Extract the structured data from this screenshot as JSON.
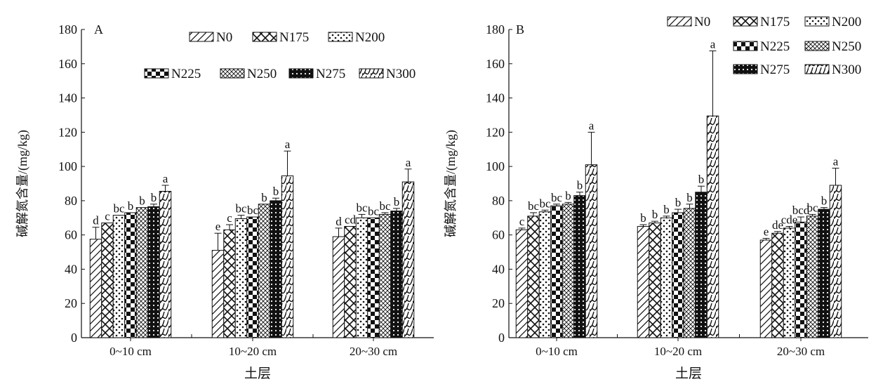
{
  "chart_data": [
    {
      "type": "bar",
      "panel_label": "A",
      "title": "",
      "xlabel": "土层",
      "ylabel": "碱解氮含量/(mg/kg)",
      "ylim": [
        0,
        180
      ],
      "yticks": [
        0,
        20,
        40,
        60,
        80,
        100,
        120,
        140,
        160,
        180
      ],
      "categories": [
        "0~10 cm",
        "10~20 cm",
        "20~30 cm"
      ],
      "legend_position": "top-right",
      "series": [
        {
          "name": "N0",
          "values": [
            57.5,
            51,
            59
          ],
          "errors": [
            7,
            10,
            5
          ],
          "sig": [
            "d",
            "e",
            "d"
          ]
        },
        {
          "name": "N175",
          "values": [
            67,
            63,
            65
          ],
          "errors": [
            0,
            3,
            0
          ],
          "sig": [
            "c",
            "c",
            "cd"
          ]
        },
        {
          "name": "N200",
          "values": [
            71.5,
            69.5,
            70
          ],
          "errors": [
            0,
            2,
            2
          ],
          "sig": [
            "bc",
            "bc",
            "bc"
          ]
        },
        {
          "name": "N225",
          "values": [
            73,
            70.5,
            70
          ],
          "errors": [
            0,
            0,
            0
          ],
          "sig": [
            "b",
            "bc",
            "bc"
          ]
        },
        {
          "name": "N250",
          "values": [
            76,
            78,
            72
          ],
          "errors": [
            0,
            0,
            1
          ],
          "sig": [
            "b",
            "b",
            "bc"
          ]
        },
        {
          "name": "N275",
          "values": [
            76.5,
            80,
            74
          ],
          "errors": [
            1.5,
            1.5,
            1.5
          ],
          "sig": [
            "b",
            "b",
            "b"
          ]
        },
        {
          "name": "N300",
          "values": [
            85.5,
            94.5,
            91
          ],
          "errors": [
            3.5,
            14.5,
            7.5
          ],
          "sig": [
            "a",
            "a",
            "a"
          ]
        }
      ]
    },
    {
      "type": "bar",
      "panel_label": "B",
      "title": "",
      "xlabel": "土层",
      "ylabel": "碱解氮含量/(mg/kg)",
      "ylim": [
        0,
        180
      ],
      "yticks": [
        0,
        20,
        40,
        60,
        80,
        100,
        120,
        140,
        160,
        180
      ],
      "categories": [
        "0~10 cm",
        "10~20 cm",
        "20~30 cm"
      ],
      "legend_position": "top-right",
      "series": [
        {
          "name": "N0",
          "values": [
            63,
            65,
            57
          ],
          "errors": [
            1,
            1,
            1
          ],
          "sig": [
            "c",
            "b",
            "e"
          ]
        },
        {
          "name": "N175",
          "values": [
            71,
            67,
            61
          ],
          "errors": [
            2,
            1,
            1
          ],
          "sig": [
            "bc",
            "b",
            "de"
          ]
        },
        {
          "name": "N200",
          "values": [
            73.5,
            70,
            64
          ],
          "errors": [
            1,
            1,
            1
          ],
          "sig": [
            "bc",
            "b",
            "cde"
          ]
        },
        {
          "name": "N225",
          "values": [
            77,
            73,
            67.5
          ],
          "errors": [
            1,
            2,
            3
          ],
          "sig": [
            "bc",
            "b",
            "bcd"
          ]
        },
        {
          "name": "N250",
          "values": [
            78,
            75.5,
            71
          ],
          "errors": [
            1,
            2.5,
            1
          ],
          "sig": [
            "b",
            "b",
            "bc"
          ]
        },
        {
          "name": "N275",
          "values": [
            83,
            85,
            75
          ],
          "errors": [
            2,
            3.5,
            1
          ],
          "sig": [
            "b",
            "b",
            "b"
          ]
        },
        {
          "name": "N300",
          "values": [
            101,
            129.5,
            89
          ],
          "errors": [
            19,
            38,
            10
          ],
          "sig": [
            "a",
            "a",
            "a"
          ]
        }
      ]
    }
  ]
}
